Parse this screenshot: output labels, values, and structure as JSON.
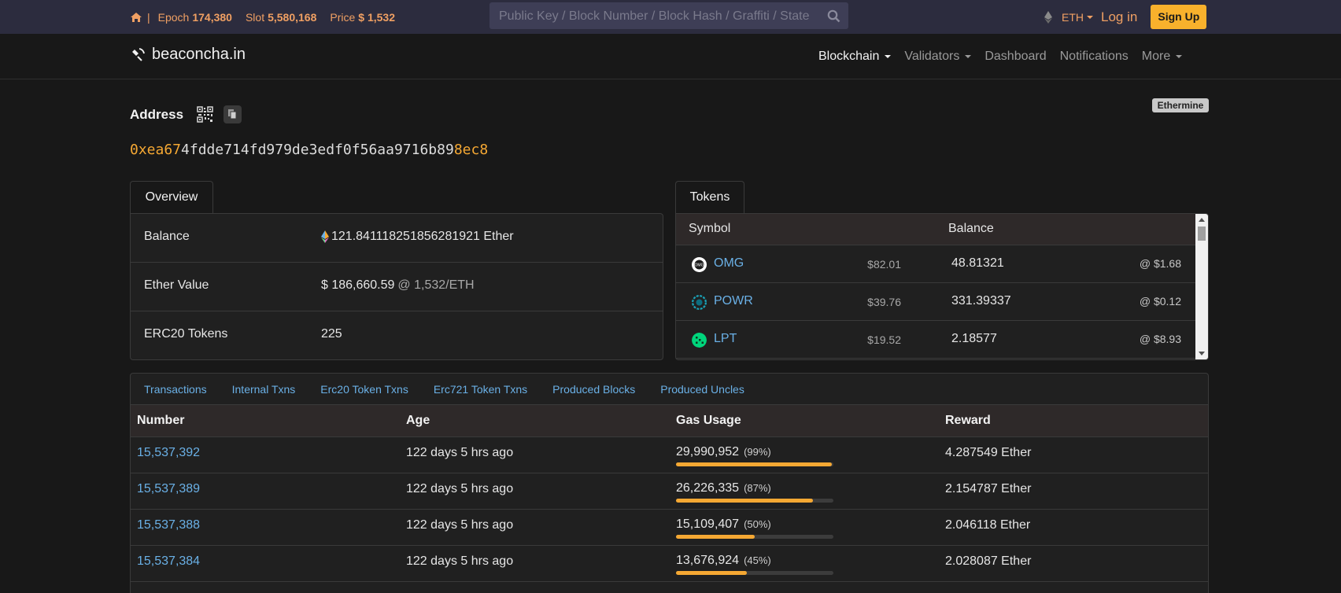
{
  "topbar": {
    "epoch_label": "Epoch",
    "epoch_value": "174,380",
    "slot_label": "Slot",
    "slot_value": "5,580,168",
    "price_label": "Price",
    "price_value": "$ 1,532",
    "search_placeholder": "Public Key / Block Number / Block Hash / Graffiti / State",
    "currency": "ETH",
    "login": "Log in",
    "signup": "Sign Up"
  },
  "nav": {
    "brand": "beaconcha.in",
    "items": [
      "Blockchain",
      "Validators",
      "Dashboard",
      "Notifications",
      "More"
    ]
  },
  "address": {
    "title": "Address",
    "badge": "Ethermine",
    "prefix": "0xea67",
    "middle": "4fdde714fd979de3edf0f56aa9716b89",
    "suffix": "8ec8"
  },
  "overview": {
    "tab": "Overview",
    "rows": [
      {
        "label": "Balance",
        "value": "121.841118251856281921 Ether",
        "muted": ""
      },
      {
        "label": "Ether Value",
        "value": "$ 186,660.59",
        "muted": "@ 1,532/ETH"
      },
      {
        "label": "ERC20 Tokens",
        "value": "225",
        "muted": ""
      }
    ]
  },
  "tokens": {
    "tab": "Tokens",
    "col_symbol": "Symbol",
    "col_balance": "Balance",
    "rows": [
      {
        "symbol": "OMG",
        "usd": "$82.01",
        "balance": "48.81321",
        "price": "@ $1.68",
        "color": "#ffffff"
      },
      {
        "symbol": "POWR",
        "usd": "$39.76",
        "balance": "331.39337",
        "price": "@ $0.12",
        "color": "#1aa3b8"
      },
      {
        "symbol": "LPT",
        "usd": "$19.52",
        "balance": "2.18577",
        "price": "@ $8.93",
        "color": "#00d57c"
      }
    ]
  },
  "blocks": {
    "tabs": [
      "Transactions",
      "Internal Txns",
      "Erc20 Token Txns",
      "Erc721 Token Txns",
      "Produced Blocks",
      "Produced Uncles"
    ],
    "headers": {
      "number": "Number",
      "age": "Age",
      "gas": "Gas Usage",
      "reward": "Reward"
    },
    "rows": [
      {
        "number": "15,537,392",
        "age": "122 days 5 hrs ago",
        "gas": "29,990,952",
        "pct": "(99%)",
        "fill": 0.99,
        "reward": "4.287549 Ether"
      },
      {
        "number": "15,537,389",
        "age": "122 days 5 hrs ago",
        "gas": "26,226,335",
        "pct": "(87%)",
        "fill": 0.87,
        "reward": "2.154787 Ether"
      },
      {
        "number": "15,537,388",
        "age": "122 days 5 hrs ago",
        "gas": "15,109,407",
        "pct": "(50%)",
        "fill": 0.5,
        "reward": "2.046118 Ether"
      },
      {
        "number": "15,537,384",
        "age": "122 days 5 hrs ago",
        "gas": "13,676,924",
        "pct": "(45%)",
        "fill": 0.45,
        "reward": "2.028087 Ether"
      }
    ]
  },
  "colors": {
    "accent": "#f5a833",
    "link": "#6ab0e6",
    "signup": "#f8b12c"
  }
}
